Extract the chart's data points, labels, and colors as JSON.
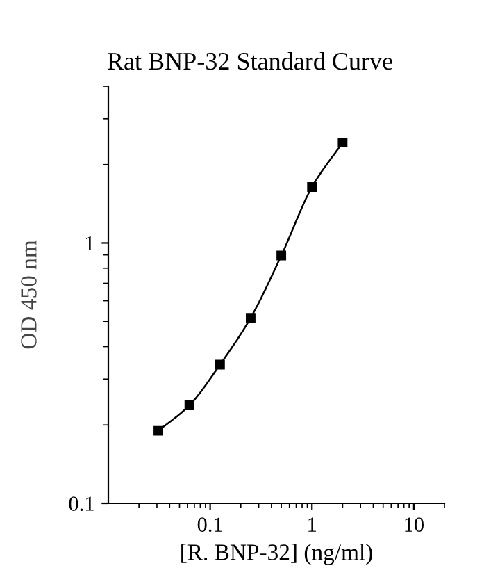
{
  "chart_data": {
    "type": "line",
    "title": "Rat BNP-32 Standard Curve",
    "xlabel": "[R. BNP-32] (ng/ml)",
    "ylabel": "OD 450 nm",
    "log": "xy",
    "marker": "square",
    "line_style": "solid",
    "grid": false,
    "legend": false,
    "x": [
      0.031,
      0.0625,
      0.125,
      0.25,
      0.5,
      1,
      2
    ],
    "series": [
      {
        "color": "#000000",
        "values": [
          0.19,
          0.238,
          0.341,
          0.516,
          0.895,
          1.64,
          2.43
        ]
      }
    ],
    "xlim": [
      0.01,
      20
    ],
    "ylim": [
      0.1,
      4
    ],
    "xticks": [
      0.1,
      1,
      10
    ],
    "yticks": [
      0.1,
      1
    ]
  }
}
